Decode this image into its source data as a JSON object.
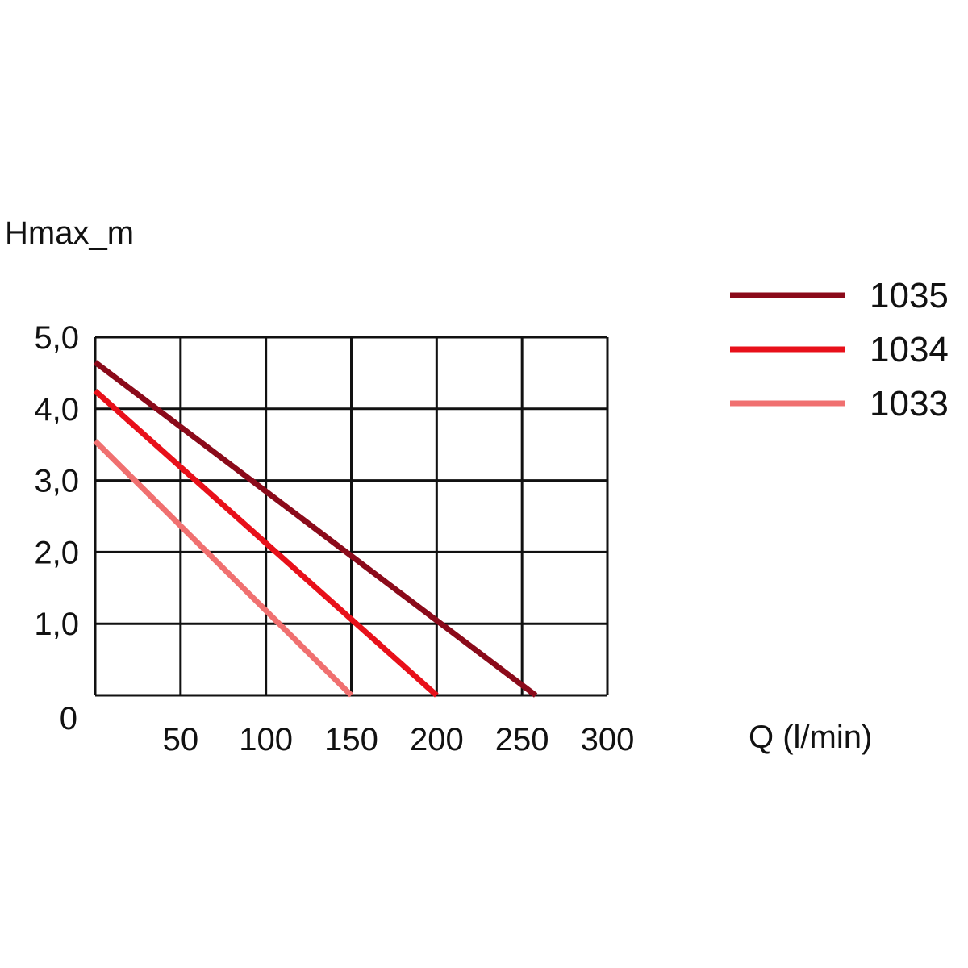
{
  "chart_data": {
    "type": "line",
    "ylabel": "Hmax_m",
    "xlabel": "Q (l/min)",
    "xlim": [
      0,
      300
    ],
    "ylim": [
      0,
      5
    ],
    "x_ticks": [
      {
        "value": 50,
        "label": "50"
      },
      {
        "value": 100,
        "label": "100"
      },
      {
        "value": 150,
        "label": "150"
      },
      {
        "value": 200,
        "label": "200"
      },
      {
        "value": 250,
        "label": "250"
      },
      {
        "value": 300,
        "label": "300"
      }
    ],
    "y_ticks": [
      {
        "value": 0,
        "label": "0"
      },
      {
        "value": 1,
        "label": "1,0"
      },
      {
        "value": 2,
        "label": "2,0"
      },
      {
        "value": 3,
        "label": "3,0"
      },
      {
        "value": 4,
        "label": "4,0"
      },
      {
        "value": 5,
        "label": "5,0"
      }
    ],
    "grid": true,
    "legend_position": "right",
    "series": [
      {
        "name": "1035",
        "color": "#8b0a1a",
        "points": [
          [
            0,
            4.65
          ],
          [
            258,
            0
          ]
        ]
      },
      {
        "name": "1034",
        "color": "#e8101a",
        "points": [
          [
            0,
            4.25
          ],
          [
            200,
            0
          ]
        ]
      },
      {
        "name": "1033",
        "color": "#f07070",
        "points": [
          [
            0,
            3.55
          ],
          [
            150,
            0
          ]
        ]
      }
    ]
  }
}
